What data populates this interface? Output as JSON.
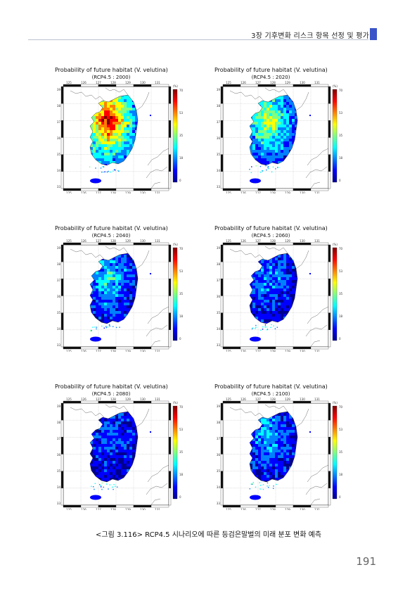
{
  "header": {
    "title": "3장 기후변화 리스크 항목 선정 및 평가"
  },
  "figure_caption": "<그림 3.116> RCP4.5 시나리오에 따른 등검은말벌의 미래 분포 변화 예측",
  "page_number": "191",
  "colorbar": {
    "unit": "(%)",
    "ticks": [
      "70",
      "53",
      "35",
      "18",
      "0"
    ],
    "colors": [
      "#00008f",
      "#0000ff",
      "#0080ff",
      "#00ffff",
      "#80ff80",
      "#ffff00",
      "#ff8000",
      "#ff0000",
      "#800000"
    ]
  },
  "lon_ticks": [
    "125",
    "126",
    "127",
    "128",
    "129",
    "130",
    "131"
  ],
  "lat_ticks": [
    "39",
    "38",
    "37",
    "36",
    "35",
    "34",
    "33"
  ],
  "panels": [
    {
      "title": "Probability of future habitat (V. velutina)",
      "subtitle": "(RCP4.5 : 2000)",
      "level": 0.85
    },
    {
      "title": "Probability of future habitat (V. velutina)",
      "subtitle": "(RCP4.5 : 2020)",
      "level": 0.55
    },
    {
      "title": "Probability of future habitat (V. velutina)",
      "subtitle": "(RCP4.5 : 2040)",
      "level": 0.35
    },
    {
      "title": "Probability of future habitat (V. velutina)",
      "subtitle": "(RCP4.5 : 2060)",
      "level": 0.25
    },
    {
      "title": "Probability of future habitat (V. velutina)",
      "subtitle": "(RCP4.5 : 2080)",
      "level": 0.2
    },
    {
      "title": "Probability of future habitat (V. velutina)",
      "subtitle": "(RCP4.5 : 2100)",
      "level": 0.3
    }
  ]
}
